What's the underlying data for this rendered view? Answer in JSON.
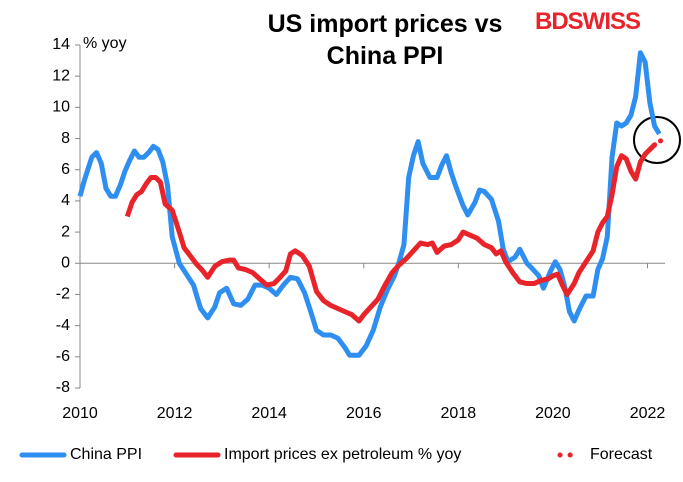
{
  "chart_data": {
    "type": "line",
    "title": "US import prices vs China PPI",
    "logo": "BDSWISS",
    "y_label": "% yoy",
    "xlim": [
      2010,
      2022.37
    ],
    "xticks": [
      2010,
      2012,
      2014,
      2016,
      2018,
      2020,
      2022
    ],
    "ylim": [
      -8,
      14
    ],
    "yticks": [
      -8,
      -6,
      -4,
      -2,
      0,
      2,
      4,
      6,
      8,
      10,
      12,
      14
    ],
    "series": [
      {
        "name": "China PPI",
        "color": "#2f8ff0",
        "style": "solid",
        "x": [
          2010.0,
          2010.1,
          2010.25,
          2010.35,
          2010.45,
          2010.55,
          2010.65,
          2010.75,
          2010.85,
          2010.95,
          2011.05,
          2011.15,
          2011.25,
          2011.35,
          2011.45,
          2011.55,
          2011.65,
          2011.75,
          2011.85,
          2011.95,
          2012.1,
          2012.25,
          2012.4,
          2012.55,
          2012.7,
          2012.85,
          2012.95,
          2013.1,
          2013.25,
          2013.4,
          2013.55,
          2013.7,
          2013.85,
          2014.0,
          2014.15,
          2014.3,
          2014.45,
          2014.6,
          2014.75,
          2014.9,
          2015.0,
          2015.15,
          2015.3,
          2015.45,
          2015.6,
          2015.7,
          2015.9,
          2016.05,
          2016.2,
          2016.35,
          2016.5,
          2016.65,
          2016.75,
          2016.85,
          2016.95,
          2017.05,
          2017.15,
          2017.25,
          2017.4,
          2017.55,
          2017.65,
          2017.75,
          2017.85,
          2017.95,
          2018.1,
          2018.2,
          2018.35,
          2018.45,
          2018.55,
          2018.7,
          2018.85,
          2018.95,
          2019.05,
          2019.2,
          2019.3,
          2019.45,
          2019.55,
          2019.7,
          2019.8,
          2019.95,
          2020.05,
          2020.15,
          2020.25,
          2020.35,
          2020.45,
          2020.55,
          2020.7,
          2020.85,
          2020.95,
          2021.05,
          2021.15,
          2021.25,
          2021.35,
          2021.45,
          2021.55,
          2021.65,
          2021.75,
          2021.85,
          2021.95,
          2022.05,
          2022.15,
          2022.25
        ],
        "values": [
          4.3,
          5.4,
          6.8,
          7.1,
          6.4,
          4.8,
          4.3,
          4.3,
          5.0,
          5.9,
          6.6,
          7.2,
          6.8,
          6.8,
          7.1,
          7.5,
          7.3,
          6.5,
          5.0,
          1.7,
          0.0,
          -0.7,
          -1.4,
          -2.9,
          -3.5,
          -2.8,
          -1.9,
          -1.6,
          -2.6,
          -2.7,
          -2.3,
          -1.4,
          -1.4,
          -1.6,
          -2.0,
          -1.4,
          -0.9,
          -1.0,
          -1.9,
          -3.3,
          -4.3,
          -4.6,
          -4.6,
          -4.8,
          -5.4,
          -5.9,
          -5.9,
          -5.3,
          -4.3,
          -2.8,
          -1.7,
          -0.8,
          0.1,
          1.2,
          5.5,
          6.9,
          7.8,
          6.4,
          5.5,
          5.5,
          6.3,
          6.9,
          5.8,
          4.9,
          3.7,
          3.1,
          3.9,
          4.7,
          4.6,
          4.1,
          2.7,
          0.9,
          0.1,
          0.4,
          0.9,
          0.0,
          -0.3,
          -0.8,
          -1.6,
          -0.5,
          0.1,
          -0.4,
          -1.5,
          -3.1,
          -3.7,
          -3.0,
          -2.1,
          -2.1,
          -0.4,
          0.3,
          1.7,
          6.8,
          9.0,
          8.8,
          9.0,
          9.5,
          10.7,
          13.5,
          12.9,
          10.3,
          8.8,
          8.3
        ]
      },
      {
        "name": "Import prices ex petroleum % yoy",
        "color": "#e8232a",
        "style": "solid",
        "x": [
          2011.0,
          2011.1,
          2011.2,
          2011.3,
          2011.4,
          2011.5,
          2011.6,
          2011.7,
          2011.8,
          2011.95,
          2012.1,
          2012.2,
          2012.3,
          2012.45,
          2012.6,
          2012.7,
          2012.85,
          2013.0,
          2013.15,
          2013.25,
          2013.35,
          2013.5,
          2013.65,
          2013.8,
          2013.95,
          2014.1,
          2014.2,
          2014.35,
          2014.45,
          2014.55,
          2014.7,
          2014.85,
          2015.0,
          2015.15,
          2015.3,
          2015.45,
          2015.6,
          2015.75,
          2015.9,
          2016.0,
          2016.15,
          2016.3,
          2016.45,
          2016.6,
          2016.75,
          2016.9,
          2017.05,
          2017.2,
          2017.35,
          2017.45,
          2017.55,
          2017.7,
          2017.85,
          2018.0,
          2018.1,
          2018.25,
          2018.4,
          2018.55,
          2018.7,
          2018.8,
          2018.9,
          2019.0,
          2019.15,
          2019.3,
          2019.45,
          2019.6,
          2019.75,
          2019.9,
          2020.0,
          2020.1,
          2020.2,
          2020.3,
          2020.45,
          2020.55,
          2020.7,
          2020.85,
          2020.95,
          2021.05,
          2021.15,
          2021.25,
          2021.35,
          2021.45,
          2021.55,
          2021.65,
          2021.75,
          2021.85,
          2021.95,
          2022.05,
          2022.15
        ],
        "values": [
          3.0,
          3.9,
          4.4,
          4.6,
          5.1,
          5.5,
          5.5,
          5.2,
          3.8,
          3.4,
          2.0,
          1.0,
          0.6,
          0.0,
          -0.5,
          -0.9,
          -0.2,
          0.1,
          0.2,
          0.2,
          -0.3,
          -0.4,
          -0.6,
          -1.0,
          -1.4,
          -1.3,
          -1.0,
          -0.5,
          0.6,
          0.8,
          0.5,
          -0.2,
          -1.8,
          -2.4,
          -2.7,
          -2.9,
          -3.1,
          -3.3,
          -3.7,
          -3.3,
          -2.8,
          -2.3,
          -1.4,
          -0.6,
          -0.1,
          0.3,
          0.8,
          1.3,
          1.2,
          1.3,
          0.7,
          1.1,
          1.2,
          1.5,
          2.0,
          1.8,
          1.6,
          1.2,
          1.0,
          0.6,
          0.8,
          0.1,
          -0.6,
          -1.2,
          -1.3,
          -1.3,
          -1.1,
          -1.0,
          -0.8,
          -0.7,
          -1.4,
          -2.0,
          -1.3,
          -0.6,
          0.1,
          0.8,
          2.0,
          2.6,
          3.0,
          4.4,
          6.2,
          6.9,
          6.7,
          5.9,
          5.4,
          6.5,
          7.0,
          7.3,
          7.6
        ]
      },
      {
        "name": "Forecast",
        "color": "#e8232a",
        "style": "dotted",
        "x": [
          2022.15,
          2022.3
        ],
        "values": [
          7.6,
          7.9
        ]
      }
    ]
  }
}
